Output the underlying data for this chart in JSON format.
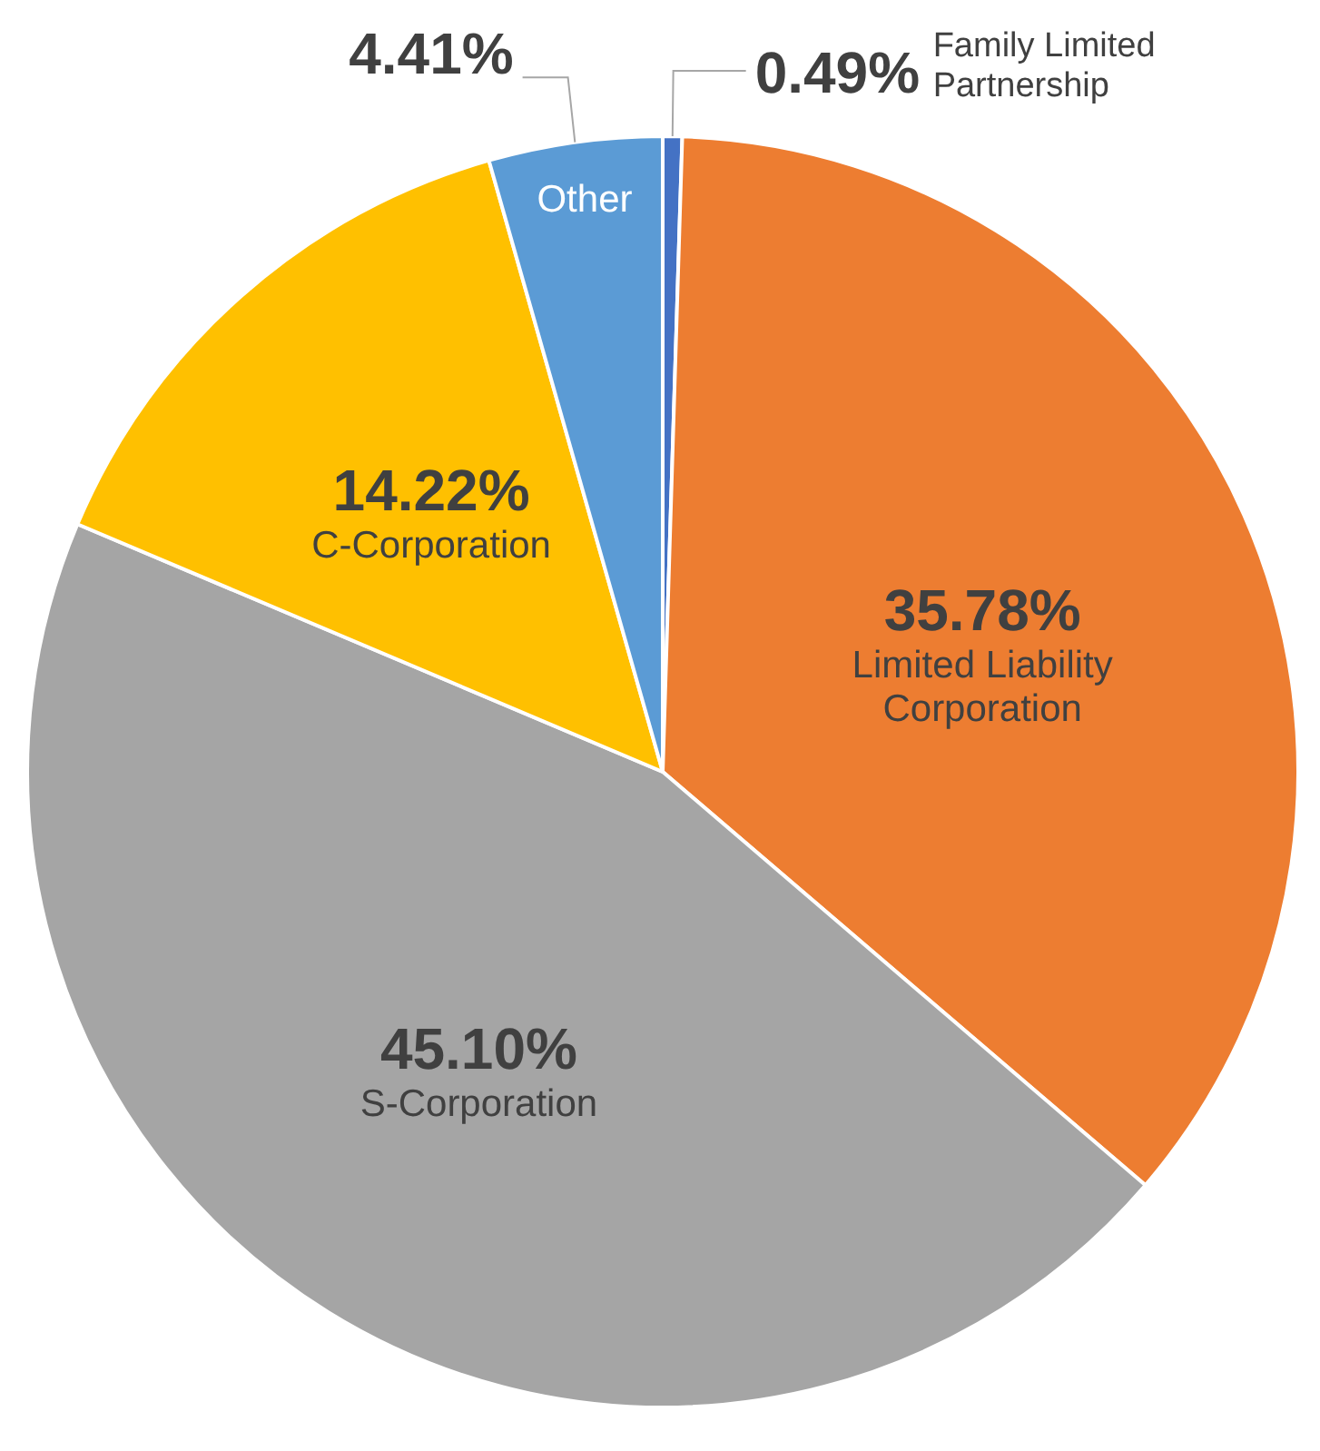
{
  "chart_data": {
    "type": "pie",
    "categories": [
      "Family Limited Partnership",
      "Limited Liability Corporation",
      "S-Corporation",
      "C-Corporation",
      "Other"
    ],
    "values": [
      0.49,
      35.78,
      45.1,
      14.22,
      4.41
    ],
    "value_labels": [
      "0.49%",
      "35.78%",
      "45.10%",
      "14.22%",
      "4.41%"
    ],
    "colors": [
      "#4472c4",
      "#ed7d31",
      "#a5a5a5",
      "#ffc000",
      "#5b9bd5"
    ]
  }
}
